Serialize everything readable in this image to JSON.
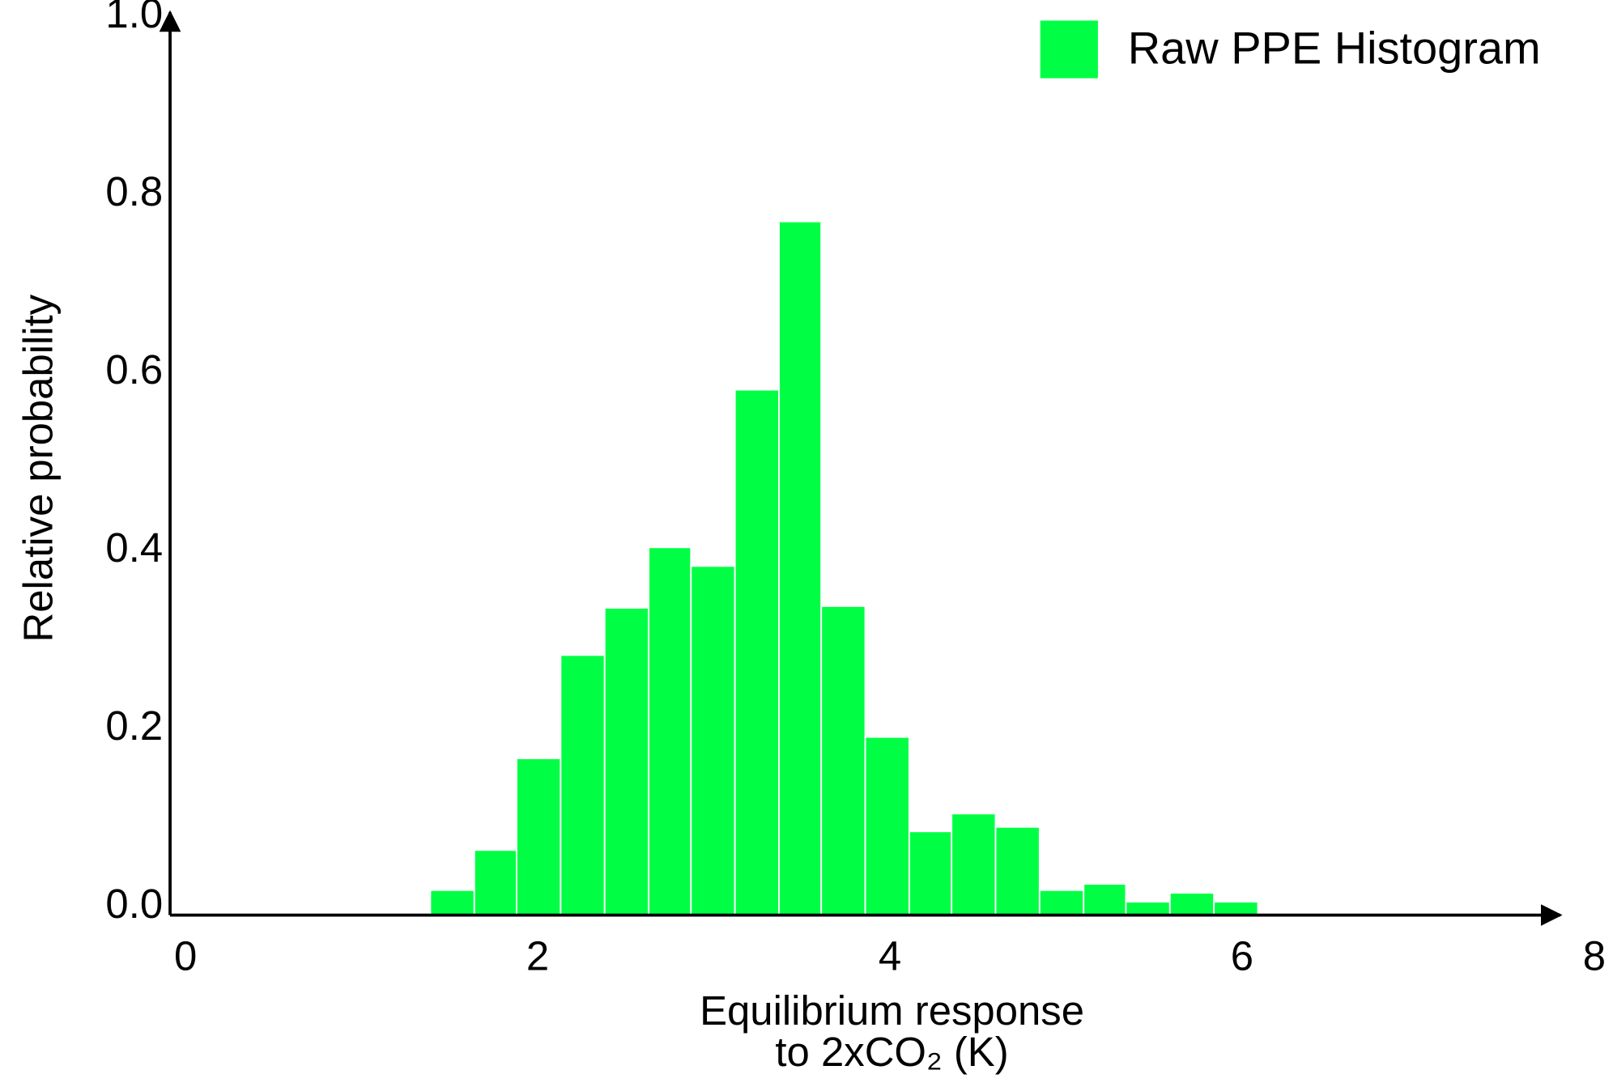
{
  "chart_data": {
    "type": "histogram",
    "x_label": [
      "Equilibrium response",
      "to 2xCO₂ (K)"
    ],
    "y_label": "Relative probability",
    "bins": [
      1.39,
      1.64,
      1.88,
      2.13,
      2.38,
      2.63,
      2.87,
      3.12,
      3.37,
      3.61,
      3.86,
      4.11,
      4.35,
      4.6,
      4.85,
      5.1,
      5.34,
      5.59,
      5.84,
      6.09
    ],
    "series": [
      {
        "name": "Raw PPE Histogram",
        "color": "#00ff44",
        "values": [
          0.028,
          0.073,
          0.176,
          0.292,
          0.345,
          0.413,
          0.392,
          0.59,
          0.779,
          0.347,
          0.2,
          0.094,
          0.114,
          0.099,
          0.028,
          0.035,
          0.015,
          0.025,
          0.015
        ]
      }
    ],
    "xlim": [
      0,
      8
    ],
    "xticks": [
      0,
      2,
      4,
      6,
      8
    ],
    "ylim": [
      0,
      1
    ],
    "yticks": [
      {
        "value": 0,
        "label": "0.0"
      },
      0.2,
      0.4,
      0.6,
      0.8,
      {
        "value": 1,
        "label": "1.0"
      }
    ],
    "legend": "upper right",
    "grid": false
  }
}
